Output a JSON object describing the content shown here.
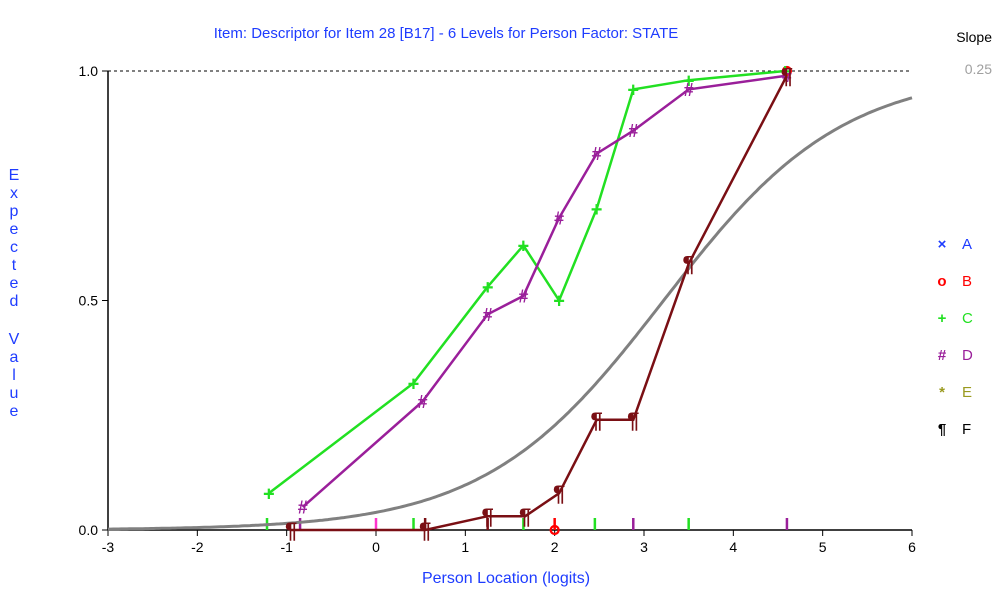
{
  "chart_data": {
    "type": "line",
    "title": "Item: Descriptor for Item 28 [B17] - 6 Levels for Person Factor: STATE",
    "xlabel": "Person Location (logits)",
    "ylabel": "Expected Value",
    "xlim": [
      -3,
      6
    ],
    "ylim": [
      0,
      1
    ],
    "x_ticks": [
      "-3",
      "-2",
      "-1",
      "0",
      "1",
      "2",
      "3",
      "4",
      "5",
      "6"
    ],
    "y_ticks": [
      "0.0",
      "0.5",
      "1.0"
    ],
    "grid": false,
    "legend_position": "right",
    "slope": {
      "label": "Slope",
      "value": "0.25"
    },
    "curve": {
      "color": "#808080",
      "slope": 0.25,
      "location": 3.22
    },
    "series": [
      {
        "name": "A",
        "marker": "×",
        "color": "#1e3cff",
        "points": []
      },
      {
        "name": "B",
        "marker": "o",
        "color": "#ff0000",
        "points": [
          [
            2.0,
            0.0
          ],
          [
            4.6,
            1.0
          ]
        ]
      },
      {
        "name": "C",
        "marker": "+",
        "color": "#22e022",
        "points": [
          [
            -1.2,
            0.08
          ],
          [
            0.42,
            0.32
          ],
          [
            1.25,
            0.53
          ],
          [
            1.65,
            0.62
          ],
          [
            2.05,
            0.5
          ],
          [
            2.47,
            0.7
          ],
          [
            2.88,
            0.96
          ],
          [
            3.5,
            0.98
          ],
          [
            4.58,
            1.0
          ]
        ]
      },
      {
        "name": "D",
        "marker": "#",
        "color": "#9a1f9a",
        "points": [
          [
            -0.82,
            0.05
          ],
          [
            0.52,
            0.28
          ],
          [
            1.25,
            0.47
          ],
          [
            1.65,
            0.51
          ],
          [
            2.05,
            0.68
          ],
          [
            2.47,
            0.82
          ],
          [
            2.88,
            0.87
          ],
          [
            3.5,
            0.96
          ],
          [
            4.6,
            0.99
          ]
        ]
      },
      {
        "name": "E",
        "marker": "*",
        "color": "#9a9a1f",
        "points": []
      },
      {
        "name": "F",
        "marker": "¶",
        "color": "#7a0f14",
        "points": [
          [
            -0.95,
            0.0
          ],
          [
            0.55,
            0.0
          ],
          [
            1.25,
            0.03
          ],
          [
            1.67,
            0.03
          ],
          [
            2.05,
            0.08
          ],
          [
            2.47,
            0.24
          ],
          [
            2.88,
            0.24
          ],
          [
            3.5,
            0.58
          ],
          [
            4.6,
            0.99
          ]
        ]
      }
    ],
    "rug_marks": [
      {
        "x": -1.22,
        "color": "#22e022"
      },
      {
        "x": -0.85,
        "color": "#9a1f9a"
      },
      {
        "x": 0.0,
        "color": "#ff33cc"
      },
      {
        "x": 0.42,
        "color": "#22e022"
      },
      {
        "x": 0.55,
        "color": "#7a0f14"
      },
      {
        "x": 1.25,
        "color": "#7a0f14"
      },
      {
        "x": 1.65,
        "color": "#22e022"
      },
      {
        "x": 2.0,
        "color": "#ff0000"
      },
      {
        "x": 2.45,
        "color": "#22e022"
      },
      {
        "x": 2.88,
        "color": "#9a1f9a"
      },
      {
        "x": 3.5,
        "color": "#22e022"
      },
      {
        "x": 4.6,
        "color": "#9a1f9a"
      }
    ]
  }
}
